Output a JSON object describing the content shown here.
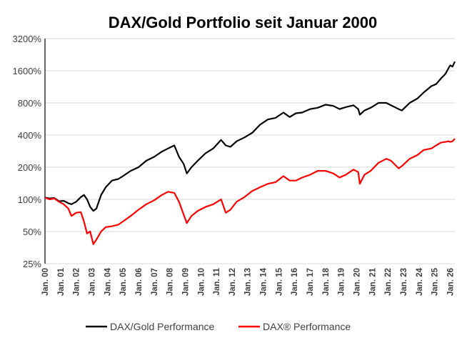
{
  "chart_data": {
    "type": "line",
    "title": "DAX/Gold Portfolio seit Januar 2000",
    "xlabel": "",
    "ylabel": "",
    "y_scale": "log",
    "ylim": [
      25,
      3200
    ],
    "y_ticks": [
      "25%",
      "50%",
      "100%",
      "200%",
      "400%",
      "800%",
      "1600%",
      "3200%"
    ],
    "y_tick_values": [
      25,
      50,
      100,
      200,
      400,
      800,
      1600,
      3200
    ],
    "x_range": [
      2000.0,
      2026.3
    ],
    "x_ticks": [
      "Jan. 00",
      "Jan. 01",
      "Jan. 02",
      "Jan. 03",
      "Jan. 04",
      "Jan. 05",
      "Jan. 06",
      "Jan. 07",
      "Jan. 08",
      "Jan. 09",
      "Jan. 10",
      "Jan. 11",
      "Jan. 12",
      "Jan. 13",
      "Jan. 14",
      "Jan. 15",
      "Jan. 16",
      "Jan. 17",
      "Jan. 18",
      "Jan. 19",
      "Jan. 20",
      "Jan. 21",
      "Jan. 22",
      "Jan. 23",
      "Jan. 24",
      "Jan. 25",
      "Jan. 26"
    ],
    "x_tick_values": [
      2000,
      2001,
      2002,
      2003,
      2004,
      2005,
      2006,
      2007,
      2008,
      2009,
      2010,
      2011,
      2012,
      2013,
      2014,
      2015,
      2016,
      2017,
      2018,
      2019,
      2020,
      2021,
      2022,
      2023,
      2024,
      2025,
      2026
    ],
    "grid": "horizontal",
    "legend_position": "bottom",
    "series": [
      {
        "name": "DAX/Gold Performance",
        "color": "#000000",
        "x": [
          2000.0,
          2000.3,
          2000.6,
          2000.9,
          2001.2,
          2001.5,
          2001.7,
          2002.0,
          2002.3,
          2002.5,
          2002.7,
          2002.9,
          2003.1,
          2003.3,
          2003.6,
          2003.9,
          2004.3,
          2004.7,
          2005.0,
          2005.5,
          2006.0,
          2006.5,
          2007.0,
          2007.5,
          2007.9,
          2008.3,
          2008.6,
          2008.9,
          2009.1,
          2009.4,
          2009.8,
          2010.3,
          2010.8,
          2011.3,
          2011.6,
          2011.9,
          2012.3,
          2012.8,
          2013.3,
          2013.8,
          2014.3,
          2014.8,
          2015.3,
          2015.7,
          2016.1,
          2016.5,
          2017.0,
          2017.5,
          2018.0,
          2018.5,
          2018.9,
          2019.3,
          2019.8,
          2020.1,
          2020.2,
          2020.5,
          2020.9,
          2021.4,
          2021.9,
          2022.2,
          2022.7,
          2022.9,
          2023.4,
          2023.9,
          2024.3,
          2024.8,
          2025.1,
          2025.4,
          2025.7,
          2025.9,
          2026.0,
          2026.15,
          2026.3
        ],
        "values": [
          104,
          102,
          103,
          96,
          97,
          92,
          90,
          95,
          105,
          110,
          100,
          85,
          78,
          82,
          110,
          130,
          150,
          155,
          165,
          185,
          200,
          230,
          250,
          280,
          300,
          320,
          250,
          215,
          175,
          200,
          230,
          270,
          300,
          360,
          320,
          310,
          350,
          380,
          420,
          500,
          560,
          580,
          650,
          590,
          640,
          650,
          700,
          720,
          770,
          750,
          700,
          730,
          760,
          700,
          620,
          680,
          720,
          800,
          800,
          760,
          700,
          680,
          800,
          880,
          1000,
          1150,
          1200,
          1350,
          1500,
          1700,
          1800,
          1750,
          1950
        ]
      },
      {
        "name": "DAX® Performance",
        "color": "#ff0000",
        "x": [
          2000.0,
          2000.3,
          2000.6,
          2000.9,
          2001.2,
          2001.5,
          2001.7,
          2002.0,
          2002.3,
          2002.5,
          2002.7,
          2002.9,
          2003.1,
          2003.3,
          2003.6,
          2003.9,
          2004.3,
          2004.7,
          2005.0,
          2005.5,
          2006.0,
          2006.5,
          2007.0,
          2007.5,
          2007.9,
          2008.3,
          2008.6,
          2008.9,
          2009.1,
          2009.4,
          2009.8,
          2010.3,
          2010.8,
          2011.3,
          2011.6,
          2011.9,
          2012.3,
          2012.8,
          2013.3,
          2013.8,
          2014.3,
          2014.8,
          2015.3,
          2015.7,
          2016.1,
          2016.5,
          2017.0,
          2017.5,
          2018.0,
          2018.5,
          2018.9,
          2019.3,
          2019.8,
          2020.1,
          2020.2,
          2020.5,
          2020.9,
          2021.4,
          2021.9,
          2022.2,
          2022.7,
          2022.9,
          2023.4,
          2023.9,
          2024.3,
          2024.8,
          2025.1,
          2025.4,
          2025.7,
          2025.9,
          2026.0,
          2026.15,
          2026.3
        ],
        "values": [
          104,
          100,
          102,
          95,
          90,
          82,
          70,
          75,
          76,
          62,
          48,
          50,
          38,
          42,
          50,
          55,
          56,
          58,
          62,
          70,
          80,
          90,
          98,
          110,
          118,
          115,
          95,
          72,
          60,
          70,
          78,
          85,
          90,
          100,
          75,
          80,
          95,
          105,
          120,
          130,
          140,
          145,
          165,
          150,
          150,
          160,
          170,
          185,
          185,
          175,
          160,
          170,
          190,
          180,
          140,
          170,
          185,
          220,
          240,
          230,
          195,
          205,
          240,
          260,
          290,
          300,
          320,
          340,
          345,
          350,
          345,
          350,
          370
        ]
      }
    ]
  }
}
